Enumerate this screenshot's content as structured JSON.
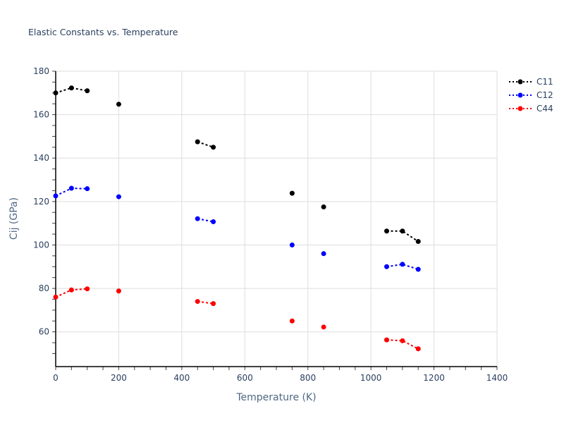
{
  "chart_data": {
    "type": "line",
    "title": "Elastic Constants vs. Temperature",
    "xlabel": "Temperature (K)",
    "ylabel": "Cij (GPa)",
    "xlim": [
      0,
      1400
    ],
    "ylim": [
      44,
      180
    ],
    "xticks": [
      0,
      200,
      400,
      600,
      800,
      1000,
      1200,
      1400
    ],
    "yticks": [
      60,
      80,
      100,
      120,
      140,
      160,
      180
    ],
    "grid": true,
    "legend_position": "right-top",
    "line_style": "dotted with markers; gaps where data missing",
    "x": [
      0,
      50,
      100,
      null,
      200,
      null,
      450,
      500,
      null,
      750,
      null,
      850,
      null,
      1050,
      1100,
      1150
    ],
    "series": [
      {
        "name": "C11",
        "color": "#000000",
        "values": [
          170.0,
          172.3,
          171.0,
          null,
          164.8,
          null,
          147.5,
          145.0,
          null,
          123.8,
          null,
          117.5,
          null,
          106.4,
          106.4,
          101.6
        ]
      },
      {
        "name": "C12",
        "color": "#0000ff",
        "values": [
          122.6,
          126.1,
          125.9,
          null,
          122.2,
          null,
          112.1,
          110.7,
          null,
          100.0,
          null,
          96.0,
          null,
          90.0,
          91.1,
          88.8
        ]
      },
      {
        "name": "C44",
        "color": "#ff0000",
        "values": [
          76.0,
          79.3,
          79.8,
          null,
          78.8,
          null,
          74.0,
          73.0,
          null,
          65.0,
          null,
          62.2,
          null,
          56.3,
          55.9,
          52.2
        ]
      }
    ]
  },
  "legend": {
    "items": [
      "C11",
      "C12",
      "C44"
    ]
  }
}
